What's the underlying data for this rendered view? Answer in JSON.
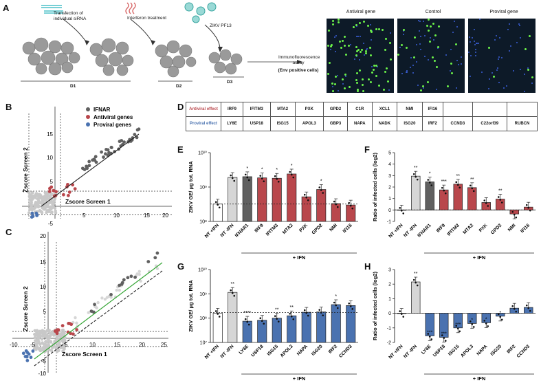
{
  "figure": {
    "panel_labels": [
      "A",
      "B",
      "C",
      "D",
      "E",
      "F",
      "G",
      "H"
    ],
    "colors": {
      "ifnar": "#606060",
      "antiviral": "#b9474c",
      "proviral": "#4a72b0",
      "control_light": "#d6d6d6",
      "background_point": "#c8c8c8",
      "fit_green": "#35a535"
    }
  },
  "panel_a": {
    "step1": "Transfection of individual siRNA",
    "step2": "Interferon treatment",
    "step3": "ZIKV PF13",
    "day1": "D1",
    "day2": "D2",
    "day3": "D3",
    "assay": "Immunofluorescence assay",
    "assay_note": "(Env positive cells)",
    "image_titles": [
      "Antiviral gene",
      "Control",
      "Proviral gene"
    ]
  },
  "panel_b": {
    "xlabel": "Zscore Screen 1",
    "ylabel": "Zscore Screen 2",
    "legend": [
      "IFNAR",
      "Antiviral genes",
      "Proviral genes"
    ],
    "x_ticks": [
      "5",
      "10",
      "15",
      "20"
    ],
    "y_ticks": [
      "15",
      "10",
      "5",
      "-5"
    ]
  },
  "panel_c": {
    "xlabel": "Zscore Screen 1",
    "ylabel": "Zscore Screen 2",
    "x_ticks": [
      "-10",
      "-5",
      "5",
      "10",
      "15",
      "20",
      "25"
    ],
    "y_ticks": [
      "20",
      "15",
      "10",
      "5",
      "-5",
      "-10"
    ]
  },
  "panel_d": {
    "antiviral_label": "Antiviral effect",
    "proviral_label": "Proviral effect",
    "antiviral_genes": [
      "IRF9",
      "IFITM3",
      "MTA2",
      "PXK",
      "GPD2",
      "C1R",
      "XCL1",
      "NMI",
      "IFI16",
      "",
      "",
      ""
    ],
    "proviral_genes": [
      "LY6E",
      "USP18",
      "ISG15",
      "APOL3",
      "GBP3",
      "NAPA",
      "NADK",
      "ISG20",
      "IRF2",
      "CCND3",
      "C22orf39",
      "RUBCN"
    ]
  },
  "chart_data": [
    {
      "panel": "E",
      "type": "bar",
      "ylabel": "ZIKV GE/ μg tot. RNA",
      "y_scale": "log",
      "ylim": [
        100000000,
        10000000000
      ],
      "y_ticks": [
        "10¹⁰",
        "10⁹",
        "10⁸"
      ],
      "categories": [
        "NT +IFN",
        "NT -IFN",
        "IFNAR1",
        "IRF9",
        "IFITM3",
        "MTA2",
        "PXK",
        "GPD2",
        "NMI",
        "IFI16"
      ],
      "values": [
        320000000,
        1900000000,
        2000000000,
        1850000000,
        1800000000,
        2400000000,
        520000000,
        850000000,
        330000000,
        300000000
      ],
      "groups": [
        "white",
        "light",
        "ifnar",
        "antiviral",
        "antiviral",
        "antiviral",
        "antiviral",
        "antiviral",
        "antiviral",
        "antiviral"
      ],
      "significance": [
        "",
        "",
        "*",
        "*",
        "*",
        "*",
        "",
        "*",
        "",
        ""
      ],
      "reference_line": 320000000,
      "group_label": "+ IFN"
    },
    {
      "panel": "F",
      "type": "bar",
      "ylabel": "Ratio of infected cells (log2)",
      "ylim": [
        -1,
        5
      ],
      "y_ticks": [
        "5",
        "4",
        "3",
        "2",
        "1",
        "0",
        "-1"
      ],
      "categories": [
        "NT +IFN",
        "NT -IFN",
        "IFNAR1",
        "IRF9",
        "IFITM3",
        "MTA2",
        "PXK",
        "GPD2",
        "NMI",
        "IFI16"
      ],
      "values": [
        0,
        2.95,
        2.45,
        1.75,
        2.25,
        1.95,
        0.65,
        0.95,
        -0.35,
        0.25
      ],
      "groups": [
        "white",
        "light",
        "ifnar",
        "antiviral",
        "antiviral",
        "antiviral",
        "antiviral",
        "antiviral",
        "antiviral",
        "antiviral"
      ],
      "significance": [
        "",
        "**",
        "*",
        "***",
        "**",
        "**",
        "",
        "**",
        "",
        ""
      ],
      "reference_line": 0,
      "group_label": "+ IFN"
    },
    {
      "panel": "G",
      "type": "bar",
      "ylabel": "ZIKV GE/ μg tot. RNA",
      "y_scale": "log",
      "ylim": [
        10000000,
        10000000000
      ],
      "y_ticks": [
        "10¹⁰",
        "10⁹",
        "10⁸",
        "10⁷"
      ],
      "categories": [
        "NT +IFN",
        "NT -IFN",
        "LY6E",
        "USP18",
        "ISG15",
        "APOL3",
        "NAPA",
        "ISG20",
        "IRF2",
        "CCND3"
      ],
      "values": [
        160000000,
        1150000000,
        75000000,
        82000000,
        100000000,
        125000000,
        175000000,
        180000000,
        360000000,
        330000000
      ],
      "groups": [
        "white",
        "light",
        "proviral",
        "proviral",
        "proviral",
        "proviral",
        "proviral",
        "proviral",
        "proviral",
        "proviral"
      ],
      "significance": [
        "",
        "**",
        "****",
        "",
        "**",
        "**",
        "",
        "",
        "*",
        ""
      ],
      "reference_line": 170000000,
      "group_label": "+ IFN"
    },
    {
      "panel": "H",
      "type": "bar",
      "ylabel": "Ratio of infected cells (log2)",
      "ylim": [
        -2,
        3
      ],
      "y_ticks": [
        "3",
        "2",
        "1",
        "0",
        "-1",
        "-2"
      ],
      "categories": [
        "NT +IFN",
        "NT -IFN",
        "LY6E",
        "USP18",
        "ISG15",
        "APOL3",
        "NAPA",
        "ISG20",
        "IRF2",
        "CCND3"
      ],
      "values": [
        0,
        2.15,
        -1.55,
        -1.65,
        -1.0,
        -0.7,
        -0.65,
        -0.2,
        0.35,
        0.4
      ],
      "groups": [
        "white",
        "light",
        "proviral",
        "proviral",
        "proviral",
        "proviral",
        "proviral",
        "proviral",
        "proviral",
        "proviral"
      ],
      "significance": [
        "",
        "**",
        "***",
        "***",
        "***",
        "*",
        "*",
        "*",
        "",
        ""
      ],
      "reference_line": 0,
      "group_label": "+ IFN"
    }
  ]
}
